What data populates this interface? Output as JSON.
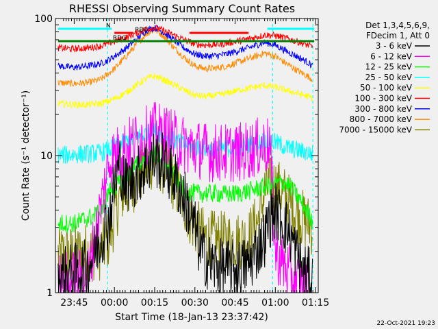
{
  "chart_data": {
    "type": "line",
    "title": "RHESSI Observing Summary Count Rates",
    "xlabel": "Start Time (18-Jan-13 23:37:42)",
    "ylabel": "Count Rate (s⁻¹ detector⁻¹)",
    "y_scale": "log",
    "ylim": [
      1,
      100
    ],
    "xlim_minutes_after_2340": [
      -2,
      96
    ],
    "x_ticks": [
      {
        "m": 5,
        "label": "23:45"
      },
      {
        "m": 20,
        "label": "00:00"
      },
      {
        "m": 35,
        "label": "00:15"
      },
      {
        "m": 50,
        "label": "00:30"
      },
      {
        "m": 65,
        "label": "00:45"
      },
      {
        "m": 80,
        "label": "01:00"
      },
      {
        "m": 95,
        "label": "01:15"
      }
    ],
    "y_tick_labels": [
      {
        "v": 1,
        "label": "1"
      },
      {
        "v": 10,
        "label": "10"
      },
      {
        "v": 100,
        "label": "100"
      }
    ],
    "legend_header": [
      "Det 1,3,4,5,6,9,",
      "FDecim 1, Att 0"
    ],
    "legend_placement": "right",
    "series": [
      {
        "name": "3 - 6 keV",
        "color": "#000000",
        "x": [
          -1,
          10,
          18,
          20,
          22,
          24,
          28,
          32,
          35,
          38,
          42,
          46,
          50,
          52,
          56,
          60,
          66,
          70,
          74,
          76,
          78,
          80,
          82,
          84,
          86,
          90,
          94
        ],
        "y": [
          1.3,
          1.5,
          3.5,
          6,
          9,
          6,
          7,
          8.5,
          9.5,
          9,
          7,
          5,
          3,
          2,
          1.6,
          1.5,
          1.5,
          1.6,
          2.2,
          2.5,
          3.5,
          4,
          3.5,
          3,
          2.5,
          1.5,
          1.2
        ]
      },
      {
        "name": "6 - 12 keV",
        "color": "#ff00ff",
        "x": [
          -1,
          10,
          18,
          20,
          22,
          26,
          30,
          35,
          40,
          44,
          48,
          52,
          56,
          60,
          66,
          70,
          74,
          78,
          80,
          84,
          88,
          92
        ],
        "y": [
          1.2,
          1.3,
          9,
          10,
          10.5,
          12,
          13.5,
          15,
          14,
          12.5,
          11.5,
          11,
          10.5,
          10.5,
          10.5,
          11,
          11.5,
          12,
          2,
          1.5,
          1.2,
          1.1
        ]
      },
      {
        "name": "12 - 25 keV",
        "color": "#00ff00",
        "x": [
          -1,
          5,
          10,
          15,
          18,
          20,
          22,
          24,
          28,
          32,
          35,
          38,
          42,
          46,
          50,
          54,
          58,
          62,
          66,
          70,
          74,
          78,
          80,
          82,
          84,
          86,
          90,
          94
        ],
        "y": [
          3.2,
          3.2,
          3.5,
          3.8,
          5.5,
          5.8,
          6.3,
          7,
          8.5,
          9.8,
          10.2,
          9.5,
          7.2,
          5.6,
          5.3,
          5.3,
          5.3,
          5.2,
          5.3,
          5.5,
          5.8,
          6,
          6.2,
          6.4,
          6.3,
          5.8,
          4.5,
          3.3
        ]
      },
      {
        "name": "25 - 50 keV",
        "color": "#00ffff",
        "x": [
          -1,
          5,
          10,
          15,
          18,
          20,
          24,
          28,
          32,
          35,
          38,
          42,
          46,
          50,
          54,
          58,
          62,
          66,
          70,
          74,
          76,
          80,
          84,
          88,
          92,
          94
        ],
        "y": [
          10,
          10.2,
          10.3,
          10.5,
          11,
          11.5,
          12.5,
          13.5,
          14.5,
          15,
          14.3,
          13,
          12,
          11.5,
          11.2,
          11.2,
          11.3,
          11.5,
          12,
          12.5,
          13,
          12.5,
          11.5,
          11,
          10.5,
          10.3
        ]
      },
      {
        "name": "50 - 100 keV",
        "color": "#ffff00",
        "x": [
          -1,
          5,
          10,
          15,
          18,
          20,
          24,
          28,
          32,
          35,
          38,
          42,
          46,
          50,
          54,
          58,
          62,
          66,
          70,
          74,
          76,
          80,
          84,
          88,
          92,
          94
        ],
        "y": [
          24,
          23.5,
          23.5,
          24,
          25,
          26,
          28.5,
          32.5,
          36.5,
          38,
          36,
          33,
          30,
          27.5,
          27,
          27.5,
          28.5,
          30,
          31,
          32,
          32.5,
          31.5,
          30,
          28.5,
          27,
          26
        ]
      },
      {
        "name": "100 - 300 keV",
        "color": "#ff0000",
        "x": [
          -1,
          5,
          10,
          15,
          18,
          20,
          24,
          28,
          32,
          35,
          38,
          42,
          46,
          50,
          54,
          58,
          62,
          66,
          70,
          74,
          76,
          80,
          84,
          88,
          92,
          94
        ],
        "y": [
          61,
          60,
          61,
          63,
          66,
          68,
          72,
          78,
          84,
          86,
          82,
          76,
          70,
          65,
          64,
          64.5,
          66,
          68.5,
          71,
          74,
          76,
          75,
          72,
          68,
          64,
          62
        ]
      },
      {
        "name": "300 - 800 keV",
        "color": "#0000ff",
        "x": [
          -1,
          5,
          10,
          15,
          18,
          20,
          24,
          28,
          32,
          35,
          38,
          42,
          46,
          50,
          54,
          58,
          62,
          66,
          70,
          74,
          76,
          80,
          84,
          88,
          92,
          94
        ],
        "y": [
          45,
          44,
          45,
          47,
          50,
          53,
          60,
          70,
          82,
          86,
          80,
          70,
          61,
          55,
          53,
          53.5,
          55,
          58,
          61,
          65,
          67,
          64,
          58,
          53,
          48,
          45
        ]
      },
      {
        "name": "800 - 7000 keV",
        "color": "#ff8c00",
        "x": [
          -1,
          5,
          10,
          15,
          18,
          20,
          24,
          28,
          32,
          35,
          38,
          42,
          46,
          50,
          54,
          58,
          62,
          66,
          70,
          74,
          76,
          80,
          84,
          88,
          92,
          94
        ],
        "y": [
          34,
          33.5,
          34,
          36,
          40,
          43,
          52,
          64,
          78,
          83,
          76,
          62,
          52,
          45,
          43,
          43.5,
          45,
          48,
          51,
          54,
          56,
          53,
          47,
          42,
          38,
          36
        ]
      },
      {
        "name": "7000 - 15000 keV",
        "color": "#808000",
        "x": [
          -1,
          5,
          10,
          15,
          18,
          20,
          22,
          24,
          28,
          32,
          35,
          38,
          42,
          46,
          50,
          54,
          58,
          62,
          66,
          70,
          74,
          76,
          78,
          80,
          82,
          84,
          86,
          90,
          94
        ],
        "y": [
          1.9,
          1.9,
          2,
          2,
          2.5,
          3.5,
          5,
          5.5,
          6.5,
          8.5,
          9.5,
          8.5,
          6.5,
          4.5,
          3,
          2.5,
          2.4,
          2.4,
          2.4,
          2.5,
          3.5,
          5.5,
          6,
          6,
          5.5,
          5,
          4.2,
          3.5,
          3
        ]
      }
    ],
    "state_bars": [
      {
        "label": "N",
        "color": "#00ffff",
        "segments": [
          [
            -1,
            19
          ],
          [
            77,
            94.5
          ]
        ]
      },
      {
        "label": "RBG",
        "color": "#ff0000",
        "segments": [
          [
            20,
            27
          ],
          [
            48,
            70
          ]
        ]
      },
      {
        "label": "RDG",
        "color": "#008000",
        "segments": [
          [
            -1,
            94.5
          ]
        ]
      }
    ],
    "vertical_markers_m": [
      17.5,
      79,
      94
    ],
    "grid": false
  },
  "footer": {
    "timestamp": "22-Oct-2021 19:23"
  }
}
